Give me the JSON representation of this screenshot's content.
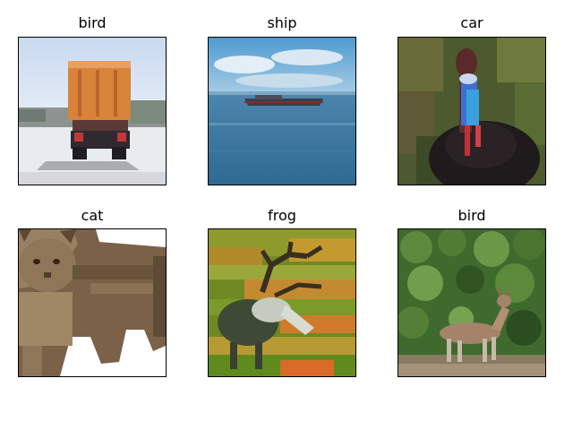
{
  "grid": {
    "rows": 2,
    "columns": 3,
    "panels": [
      {
        "title": "bird",
        "depicts": "orange dump truck seen from behind on a paved lot"
      },
      {
        "title": "ship",
        "depicts": "dark cargo ship on blue water under a cloudy sky"
      },
      {
        "title": "car",
        "depicts": "cassowary bird with a blue neck and black plumage against green foliage"
      },
      {
        "title": "cat",
        "depicts": "brown tabby cat standing on a white background"
      },
      {
        "title": "frog",
        "depicts": "deer with large antlers in a green and orange grassy field"
      },
      {
        "title": "bird",
        "depicts": "small brown deer in front of dense green bushes"
      }
    ]
  }
}
